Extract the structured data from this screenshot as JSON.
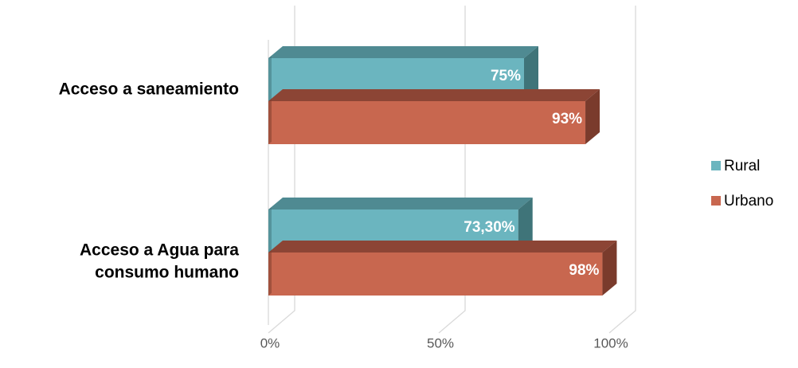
{
  "chart_data": {
    "type": "bar",
    "orientation": "horizontal",
    "style": "3d-clustered",
    "categories": [
      "Acceso a saneamiento",
      "Acceso a Agua para consumo humano"
    ],
    "category_lines": [
      [
        "Acceso a saneamiento"
      ],
      [
        "Acceso a Agua para",
        "consumo humano"
      ]
    ],
    "series": [
      {
        "name": "Rural",
        "values": [
          75,
          73.3
        ],
        "labels": [
          "75%",
          "73,30%"
        ],
        "color": "#6bb5bf",
        "top_color": "#4f8a92",
        "side_color": "#3f7479"
      },
      {
        "name": "Urbano",
        "values": [
          93,
          98
        ],
        "labels": [
          "93%",
          "98%"
        ],
        "color": "#c8674f",
        "top_color": "#8c4535",
        "side_color": "#7a3b2c"
      }
    ],
    "xlim": [
      0,
      100
    ],
    "ticks": [
      0,
      50,
      100
    ],
    "tick_labels": [
      "0%",
      "50%",
      "100%"
    ],
    "legend_position": "right",
    "grid": true
  }
}
